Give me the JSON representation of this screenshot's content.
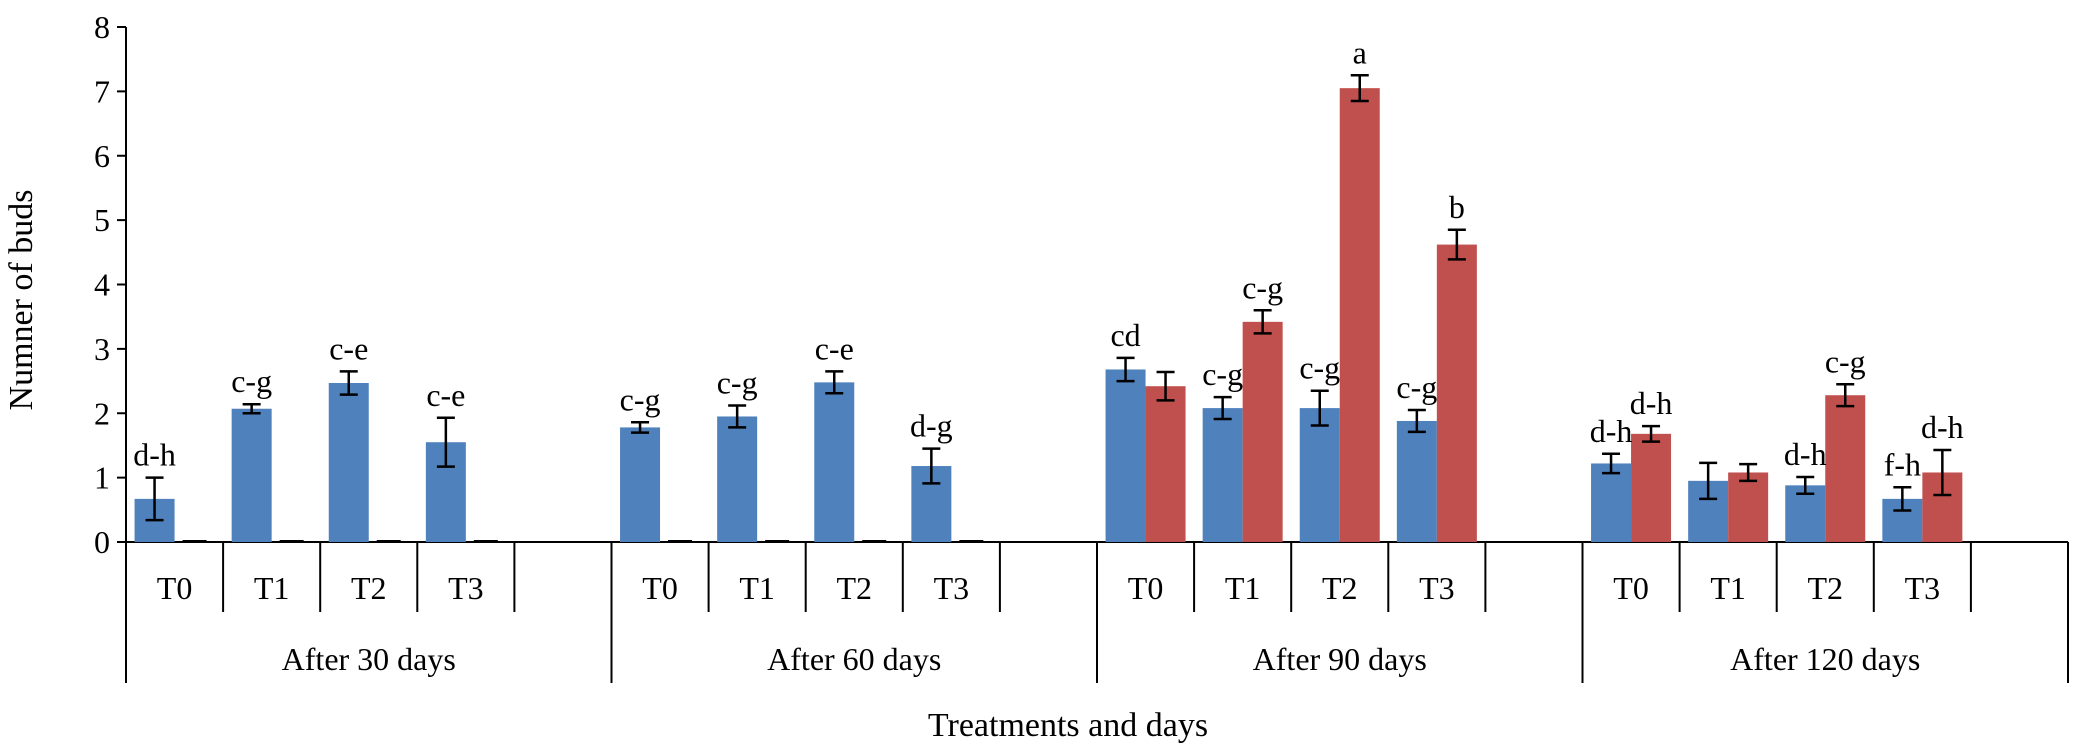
{
  "chart_data": {
    "type": "bar",
    "xlabel": "Treatments and days",
    "ylabel": "Numner of buds",
    "ylim": [
      0,
      8
    ],
    "yticks": [
      "0",
      "1",
      "2",
      "3",
      "4",
      "5",
      "6",
      "7",
      "8"
    ],
    "grid": false,
    "legend": "none",
    "groups": [
      {
        "label": "After 30 days",
        "categories": [
          "T0",
          "T1",
          "T2",
          "T3"
        ],
        "series": [
          {
            "color": "#4F81BD",
            "values": [
              0.67,
              2.07,
              2.47,
              1.55
            ],
            "errors": [
              0.33,
              0.07,
              0.18,
              0.38
            ],
            "labels": [
              "d-h",
              "c-g",
              "c-e",
              "c-e"
            ]
          },
          {
            "color": "#C0504D",
            "values": [
              0,
              0,
              0,
              0
            ],
            "errors": [
              0,
              0,
              0,
              0
            ],
            "labels": [
              "",
              "",
              "",
              ""
            ]
          }
        ]
      },
      {
        "label": "After 60 days",
        "categories": [
          "T0",
          "T1",
          "T2",
          "T3"
        ],
        "series": [
          {
            "color": "#4F81BD",
            "values": [
              1.78,
              1.95,
              2.48,
              1.18
            ],
            "errors": [
              0.08,
              0.17,
              0.17,
              0.27
            ],
            "labels": [
              "c-g",
              "c-g",
              "c-e",
              "d-g"
            ]
          },
          {
            "color": "#C0504D",
            "values": [
              0,
              0,
              0,
              0
            ],
            "errors": [
              0,
              0,
              0,
              0
            ],
            "labels": [
              "",
              "",
              "",
              ""
            ]
          }
        ]
      },
      {
        "label": "After 90 days",
        "categories": [
          "T0",
          "T1",
          "T2",
          "T3"
        ],
        "series": [
          {
            "color": "#4F81BD",
            "values": [
              2.68,
              2.08,
              2.08,
              1.88
            ],
            "errors": [
              0.18,
              0.17,
              0.27,
              0.17
            ],
            "labels": [
              "cd",
              "c-g",
              "c-g",
              "c-g"
            ]
          },
          {
            "color": "#C0504D",
            "values": [
              2.42,
              3.42,
              7.05,
              4.62
            ],
            "errors": [
              0.22,
              0.18,
              0.2,
              0.23
            ],
            "labels": [
              "",
              "c-g",
              "a",
              "b"
            ]
          }
        ]
      },
      {
        "label": "After 120 days",
        "categories": [
          "T0",
          "T1",
          "T2",
          "T3"
        ],
        "series": [
          {
            "color": "#4F81BD",
            "values": [
              1.22,
              0.95,
              0.88,
              0.67
            ],
            "errors": [
              0.15,
              0.28,
              0.13,
              0.18
            ],
            "labels": [
              "d-h",
              "",
              "d-h",
              "f-h"
            ]
          },
          {
            "color": "#C0504D",
            "values": [
              1.68,
              1.08,
              2.28,
              1.08
            ],
            "errors": [
              0.12,
              0.13,
              0.17,
              0.35
            ],
            "labels": [
              "d-h",
              "",
              "c-g",
              "d-h"
            ]
          }
        ]
      }
    ]
  }
}
